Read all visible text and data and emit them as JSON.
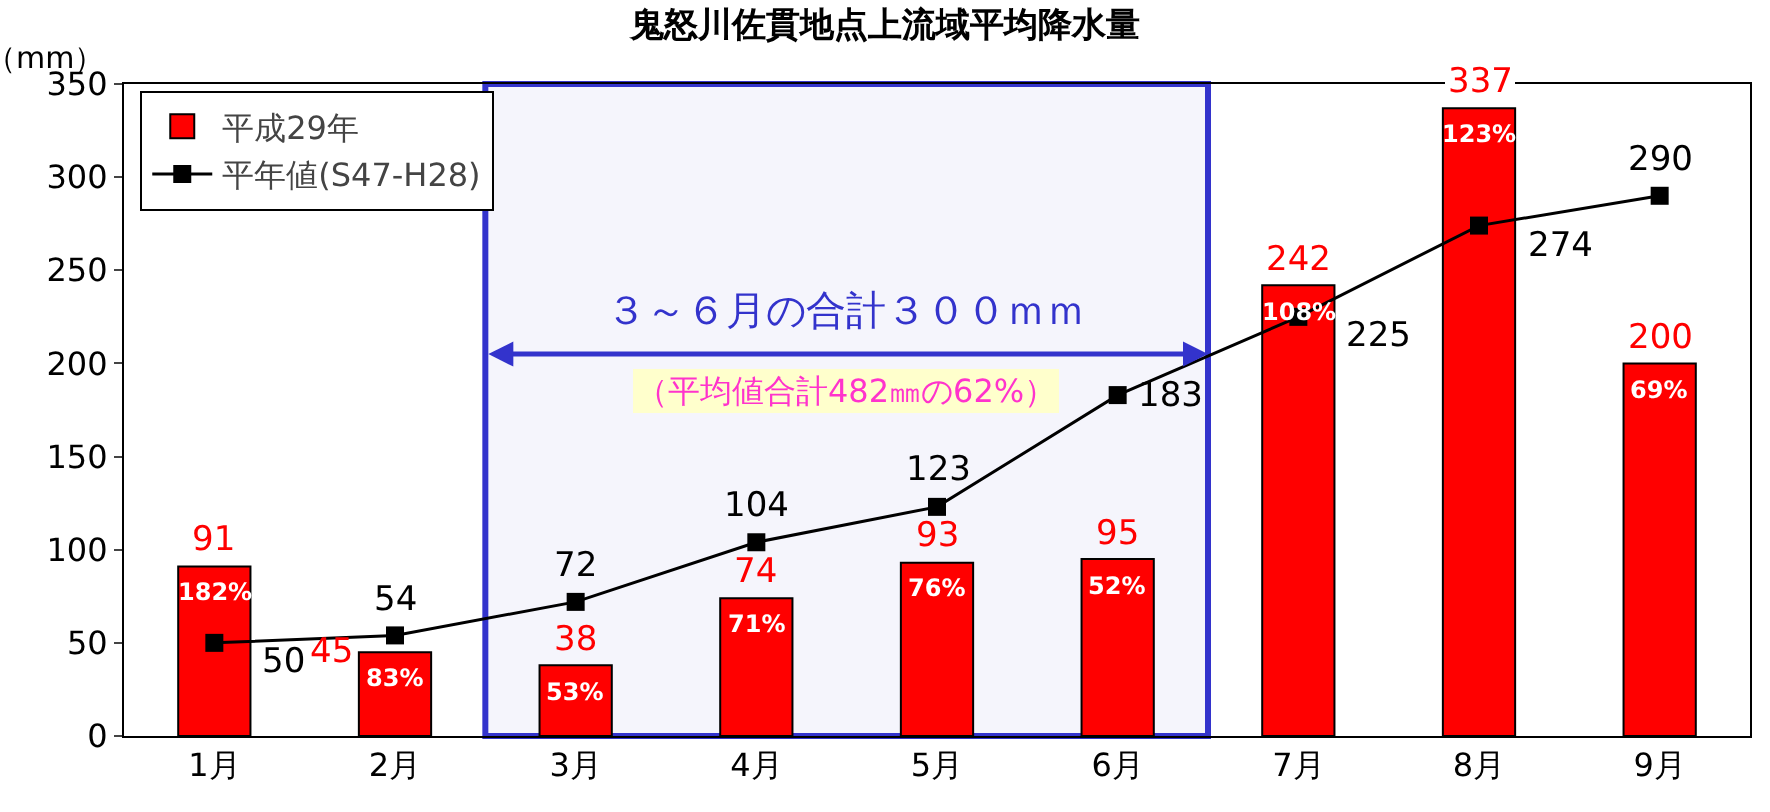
{
  "chart_data": {
    "type": "bar",
    "title": "鬼怒川佐貫地点上流域平均降水量",
    "ylabel": "（mm）",
    "categories": [
      "1月",
      "2月",
      "3月",
      "4月",
      "5月",
      "6月",
      "7月",
      "8月",
      "9月"
    ],
    "series": [
      {
        "name": "平成29年",
        "color": "#ff0000",
        "values": [
          91,
          45,
          38,
          74,
          93,
          95,
          242,
          337,
          200
        ]
      },
      {
        "name": "平年値(S47-H28)",
        "type": "line",
        "color": "#000000",
        "marker": "square",
        "values": [
          50,
          54,
          72,
          104,
          123,
          183,
          225,
          274,
          290
        ]
      }
    ],
    "ylim": [
      0,
      350
    ],
    "yticks": [
      0,
      50,
      100,
      150,
      200,
      250,
      300,
      350
    ],
    "grid": false,
    "legend": "top left",
    "data_labels": true,
    "bands": [
      {
        "axis": "x",
        "from": "3月",
        "to": "6月",
        "label": "３～６月の合計３００ｍｍ",
        "color": "#3333cc"
      }
    ],
    "annotations": [
      "（平均値合計482㎜の62%）",
      {
        "text": "182%",
        "x": "1月",
        "y": 91
      },
      {
        "text": "83%",
        "x": "2月",
        "y": 45
      },
      {
        "text": "53%",
        "x": "3月",
        "y": 38
      },
      {
        "text": "71%",
        "x": "4月",
        "y": 74
      },
      {
        "text": "76%",
        "x": "5月",
        "y": 93
      },
      {
        "text": "52%",
        "x": "6月",
        "y": 95
      },
      {
        "text": "108%",
        "x": "7月",
        "y": 242
      },
      {
        "text": "123%",
        "x": "8月",
        "y": 337
      },
      {
        "text": "69%",
        "x": "9月",
        "y": 200
      }
    ]
  }
}
